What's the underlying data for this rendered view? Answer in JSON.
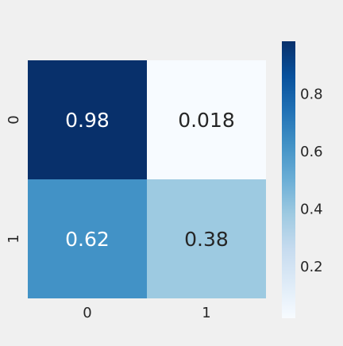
{
  "chart_data": {
    "type": "heatmap",
    "x_categories": [
      "0",
      "1"
    ],
    "y_categories": [
      "0",
      "1"
    ],
    "values": [
      [
        0.98,
        0.018
      ],
      [
        0.62,
        0.38
      ]
    ],
    "annotations": [
      [
        "0.98",
        "0.018"
      ],
      [
        "0.62",
        "0.38"
      ]
    ],
    "colormap": "Blues",
    "colorbar": {
      "range": [
        0.018,
        0.98
      ],
      "ticks": [
        0.2,
        0.4,
        0.6,
        0.8
      ],
      "tick_labels": [
        "0.2",
        "0.4",
        "0.6",
        "0.8"
      ]
    },
    "title": "",
    "xlabel": "",
    "ylabel": "",
    "grid": false
  },
  "colors": {
    "background": "#f0f0f0",
    "text_dark": "#262626",
    "text_light": "#ffffff",
    "blues_stops": [
      "#f7fbff",
      "#deebf7",
      "#c6dbef",
      "#9ecae1",
      "#6baed6",
      "#4292c6",
      "#2171b5",
      "#08519c",
      "#08306b"
    ]
  }
}
